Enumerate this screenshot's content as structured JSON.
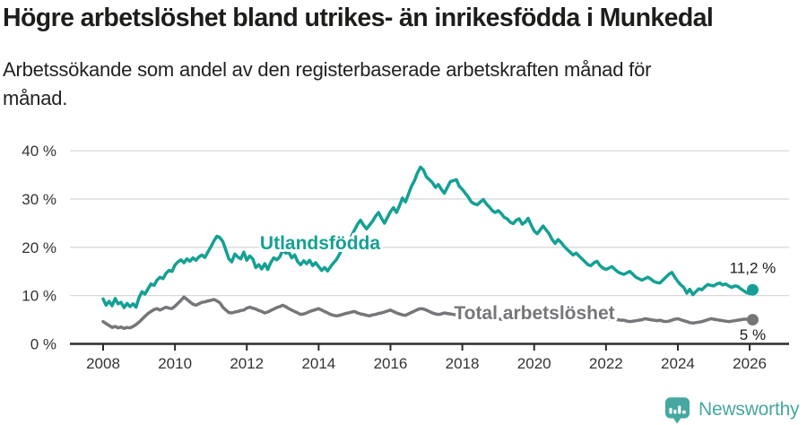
{
  "header": {
    "title": "Högre arbetslöshet bland utrikes- än inrikesfödda i Munkedal",
    "subtitle_line1": "Arbetssökande som andel av den registerbaserade arbetskraften månad för",
    "subtitle_line2": "månad."
  },
  "footer": {
    "brand": "Newsworthy"
  },
  "colors": {
    "series_utlandsfodda": "#14a094",
    "series_total": "#76767a",
    "axis": "#2b2b2b",
    "grid": "#d9d9d9",
    "tick_label": "#333333",
    "end_label": "#1a1a1a",
    "brand_teal": "#46a7a0",
    "halo": "#ffffff"
  },
  "chart_data": {
    "type": "line",
    "title": "Högre arbetslöshet bland utrikes- än inrikesfödda i Munkedal",
    "subtitle": "Arbetssökande som andel av den registerbaserade arbetskraften månad för månad.",
    "xlabel": "",
    "ylabel": "",
    "xlim": [
      2007.85,
      2027.05
    ],
    "ylim": [
      0,
      40
    ],
    "grid": "horizontal",
    "legend_position": "inline-labels",
    "x_tick_labels": [
      "2008",
      "2010",
      "2012",
      "2014",
      "2016",
      "2018",
      "2020",
      "2022",
      "2024",
      "2026"
    ],
    "x_tick_years": [
      2008,
      2010,
      2012,
      2014,
      2016,
      2018,
      2020,
      2022,
      2024,
      2026
    ],
    "y_tick_labels": [
      "0 %",
      "10 %",
      "20 %",
      "30 %",
      "40 %"
    ],
    "y_tick_values": [
      0,
      10,
      20,
      30,
      40
    ],
    "series": [
      {
        "name": "Utlandsfödda",
        "color_key": "series_utlandsfodda",
        "end_label": "11,2 %",
        "end_value": 11.2,
        "start_year": 2008,
        "points_per_year": 12,
        "values": [
          9.3,
          8.0,
          8.8,
          7.9,
          9.4,
          8.3,
          8.6,
          7.5,
          8.4,
          7.7,
          8.3,
          7.6,
          9.6,
          10.8,
          10.3,
          11.4,
          12.4,
          12.1,
          13.2,
          13.8,
          13.5,
          14.6,
          15.2,
          15.0,
          16.3,
          17.0,
          17.4,
          16.8,
          17.6,
          17.1,
          17.8,
          17.3,
          18.0,
          18.4,
          17.9,
          19.0,
          20.1,
          21.3,
          22.3,
          22.0,
          21.2,
          19.4,
          17.6,
          17.0,
          18.6,
          18.0,
          17.6,
          19.0,
          17.3,
          18.2,
          17.6,
          15.8,
          16.4,
          15.5,
          16.6,
          15.4,
          16.8,
          17.8,
          17.4,
          18.0,
          19.4,
          18.8,
          19.0,
          17.8,
          18.4,
          17.0,
          16.4,
          17.2,
          16.6,
          17.3,
          16.2,
          16.8,
          16.0,
          15.2,
          15.8,
          15.1,
          16.0,
          16.8,
          17.5,
          18.6,
          19.8,
          20.4,
          21.2,
          22.4,
          23.6,
          24.8,
          25.6,
          24.6,
          23.8,
          24.6,
          25.4,
          26.4,
          27.2,
          26.0,
          25.0,
          26.2,
          27.4,
          28.2,
          27.2,
          28.6,
          30.2,
          29.4,
          31.0,
          32.6,
          33.8,
          35.4,
          36.6,
          36.0,
          34.6,
          34.0,
          33.4,
          32.4,
          33.0,
          32.0,
          31.2,
          32.4,
          33.6,
          33.8,
          34.0,
          32.6,
          32.0,
          31.2,
          30.4,
          29.4,
          29.0,
          28.8,
          29.4,
          29.9,
          29.0,
          28.4,
          27.6,
          27.2,
          27.6,
          27.0,
          26.2,
          25.9,
          25.2,
          24.9,
          25.6,
          25.9,
          24.8,
          25.2,
          26.0,
          24.6,
          23.4,
          22.8,
          23.6,
          24.4,
          23.6,
          22.8,
          21.6,
          20.8,
          21.6,
          21.0,
          20.2,
          19.6,
          19.0,
          18.4,
          18.8,
          18.2,
          17.6,
          17.0,
          16.4,
          16.2,
          16.8,
          17.1,
          16.2,
          15.7,
          15.4,
          15.7,
          16.0,
          15.4,
          14.9,
          14.6,
          14.4,
          14.7,
          15.0,
          14.4,
          13.8,
          13.5,
          13.2,
          13.5,
          13.8,
          13.4,
          12.9,
          12.7,
          12.6,
          13.2,
          13.8,
          14.4,
          14.8,
          13.8,
          12.9,
          12.2,
          11.7,
          10.5,
          11.3,
          10.2,
          10.8,
          11.4,
          11.2,
          11.8,
          12.3,
          12.1,
          12.0,
          12.4,
          12.6,
          12.2,
          12.4,
          12.0,
          11.7,
          12.0,
          11.9,
          11.4,
          11.0,
          10.6,
          10.4,
          11.2
        ]
      },
      {
        "name": "Total arbetslöshet",
        "color_key": "series_total",
        "end_label": "5 %",
        "end_value": 5.0,
        "start_year": 2008,
        "points_per_year": 12,
        "values": [
          4.6,
          4.2,
          3.8,
          3.4,
          3.6,
          3.3,
          3.5,
          3.2,
          3.4,
          3.3,
          3.6,
          4.0,
          4.5,
          5.1,
          5.7,
          6.3,
          6.7,
          7.1,
          7.3,
          7.0,
          7.3,
          7.6,
          7.4,
          7.3,
          7.8,
          8.4,
          9.0,
          9.7,
          9.2,
          8.7,
          8.2,
          8.0,
          8.3,
          8.6,
          8.7,
          8.9,
          9.0,
          9.2,
          8.9,
          8.5,
          7.6,
          7.0,
          6.5,
          6.4,
          6.6,
          6.7,
          6.9,
          7.0,
          7.4,
          7.6,
          7.4,
          7.2,
          6.9,
          6.7,
          6.4,
          6.6,
          6.9,
          7.2,
          7.5,
          7.7,
          8.0,
          7.7,
          7.3,
          7.0,
          6.7,
          6.4,
          6.1,
          6.2,
          6.4,
          6.7,
          6.9,
          7.1,
          7.3,
          7.0,
          6.7,
          6.4,
          6.1,
          5.9,
          5.8,
          5.9,
          6.1,
          6.3,
          6.4,
          6.6,
          6.7,
          6.4,
          6.2,
          6.1,
          5.9,
          5.8,
          6.0,
          6.1,
          6.3,
          6.4,
          6.6,
          6.8,
          7.0,
          6.7,
          6.4,
          6.2,
          6.0,
          5.9,
          6.2,
          6.5,
          6.8,
          7.1,
          7.3,
          7.2,
          7.0,
          6.7,
          6.4,
          6.2,
          6.1,
          6.2,
          6.4,
          6.3,
          6.2,
          6.1,
          6.0,
          5.9,
          5.8,
          5.7,
          5.6,
          5.5,
          5.5,
          5.4,
          5.4,
          5.3,
          5.3,
          5.2,
          5.2,
          5.2,
          5.2,
          5.1,
          5.1,
          5.0,
          5.0,
          5.1,
          5.1,
          5.2,
          5.2,
          5.3,
          5.4,
          5.4,
          5.5,
          5.8,
          6.2,
          6.8,
          6.9,
          6.8,
          6.6,
          6.5,
          6.4,
          6.3,
          6.2,
          6.1,
          6.0,
          5.9,
          5.8,
          5.7,
          5.6,
          5.5,
          5.5,
          5.4,
          5.4,
          5.3,
          5.3,
          5.2,
          5.2,
          5.1,
          5.1,
          5.0,
          5.0,
          4.9,
          4.9,
          4.7,
          4.6,
          4.7,
          4.8,
          4.9,
          5.0,
          5.2,
          5.1,
          5.0,
          4.9,
          4.8,
          4.9,
          4.7,
          4.6,
          4.7,
          4.9,
          5.1,
          5.2,
          5.0,
          4.8,
          4.6,
          4.4,
          4.3,
          4.4,
          4.5,
          4.6,
          4.8,
          5.0,
          5.2,
          5.1,
          5.0,
          4.9,
          4.8,
          4.7,
          4.6,
          4.7,
          4.8,
          4.9,
          5.0,
          5.1,
          5.1,
          5.0,
          5.0
        ]
      }
    ]
  }
}
